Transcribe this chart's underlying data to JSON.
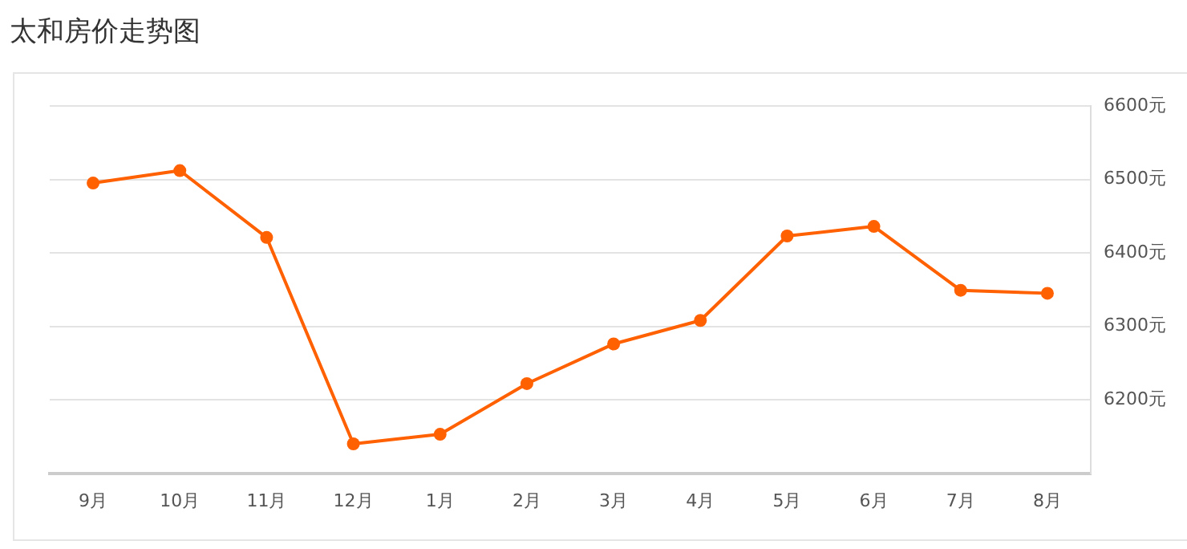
{
  "chart_data": {
    "type": "line",
    "title": "太和房价走势图",
    "categories": [
      "9月",
      "10月",
      "11月",
      "12月",
      "1月",
      "2月",
      "3月",
      "4月",
      "5月",
      "6月",
      "7月",
      "8月"
    ],
    "series": [
      {
        "color": "#ff6000",
        "values": [
          6495,
          6512,
          6421,
          6140,
          6153,
          6222,
          6276,
          6308,
          6423,
          6436,
          6349,
          6345
        ]
      }
    ],
    "ylim": [
      6100,
      6600
    ],
    "yticks": [
      {
        "value": 6200,
        "label": "6200元"
      },
      {
        "value": 6300,
        "label": "6300元"
      },
      {
        "value": 6400,
        "label": "6400元"
      },
      {
        "value": 6500,
        "label": "6500元"
      },
      {
        "value": 6600,
        "label": "6600元"
      }
    ],
    "grid": "y",
    "legend": false,
    "marker": "circle",
    "line_style": "solid"
  }
}
